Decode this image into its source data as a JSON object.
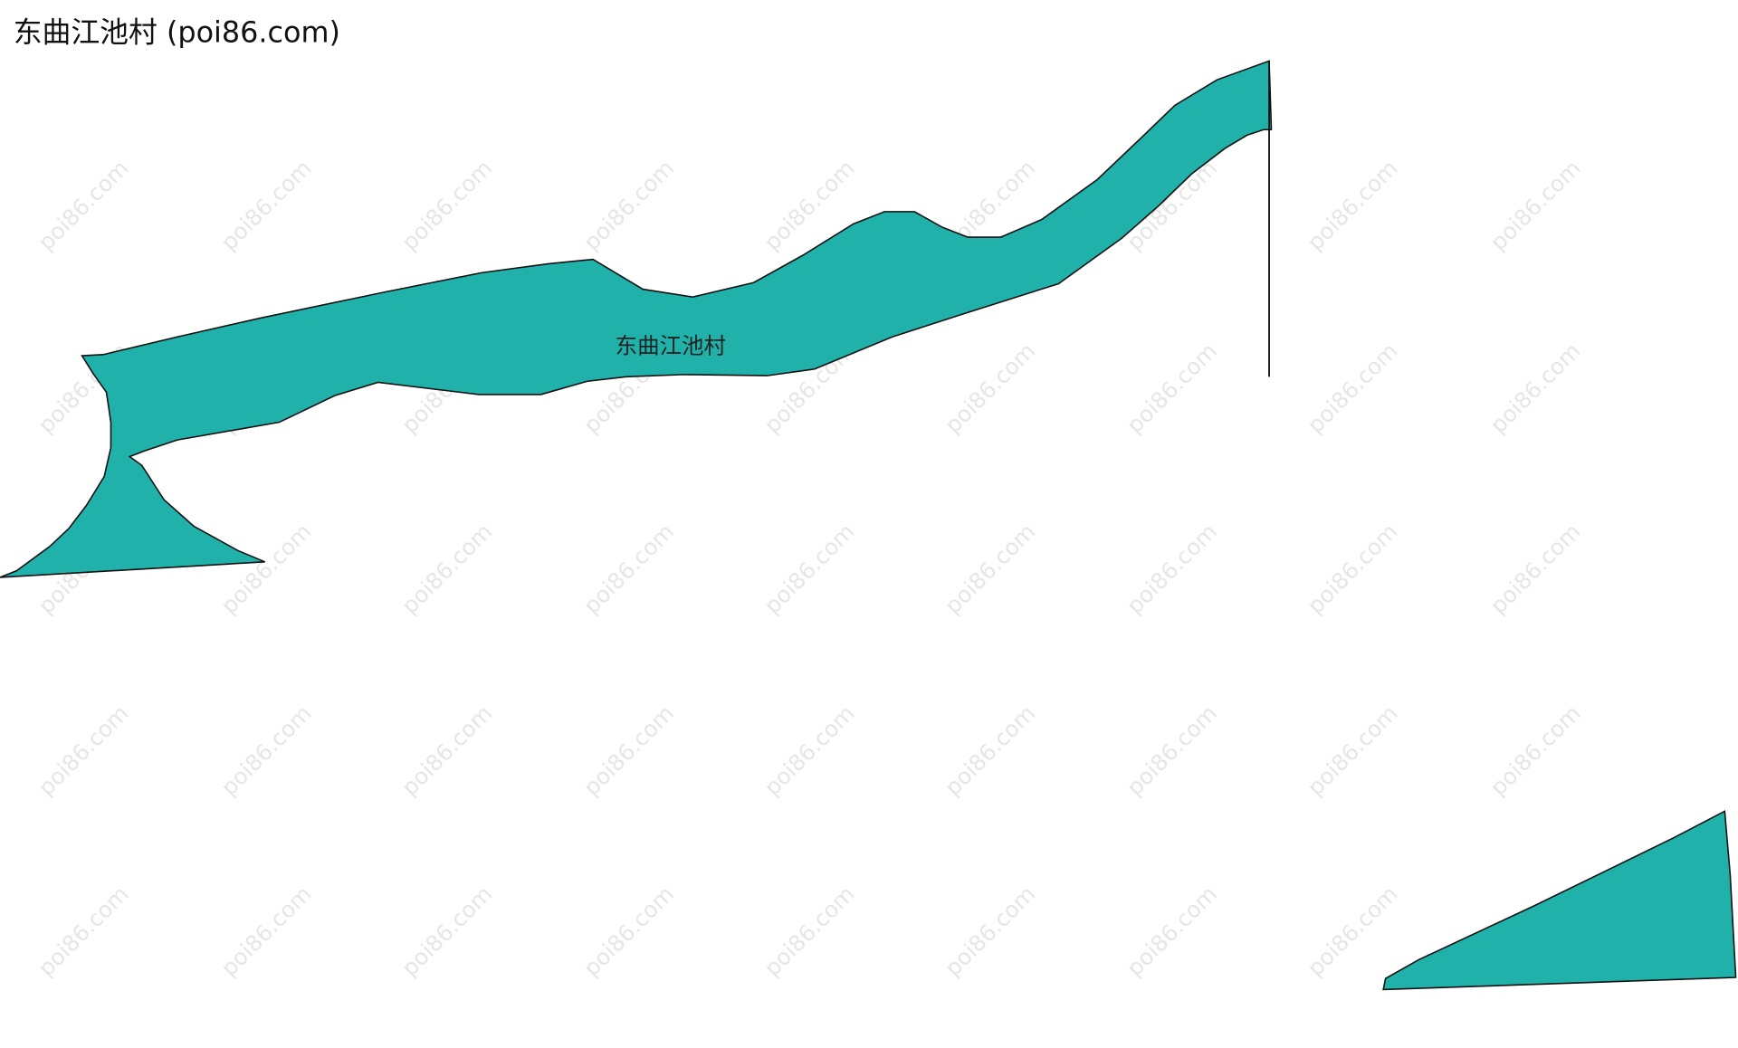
{
  "title": "东曲江池村 (poi86.com)",
  "map": {
    "region_label": "东曲江池村"
  },
  "watermark": "poi86.com"
}
